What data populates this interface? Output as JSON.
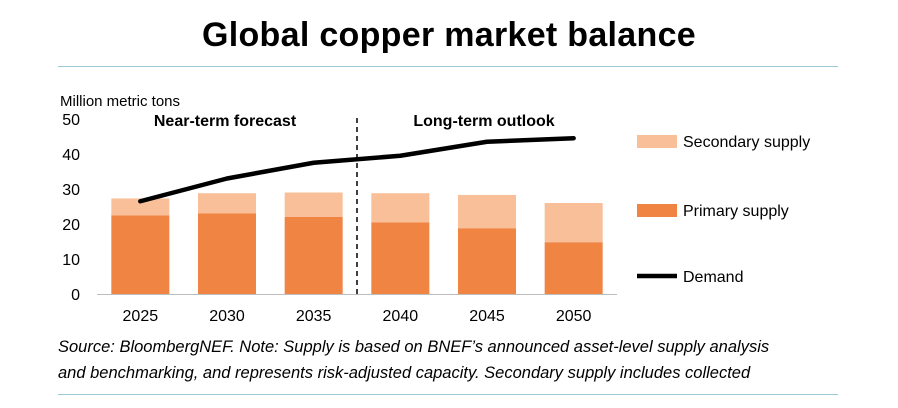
{
  "title": "Global copper market balance",
  "source_lines": [
    "Source: BloombergNEF. Note: Supply is based on BNEF’s announced asset-level supply analysis",
    "and benchmarking, and represents risk-adjusted capacity. Secondary supply includes collected"
  ],
  "colors": {
    "primary": "#ef8443",
    "secondary": "#f8bf98",
    "demand": "#000000",
    "rule": "#9ec9d6"
  },
  "chart_data": {
    "type": "bar",
    "ylabel": "Million metric tons",
    "ylim": [
      0,
      50
    ],
    "yticks": [
      0,
      10,
      20,
      30,
      40,
      50
    ],
    "categories": [
      "2025",
      "2030",
      "2035",
      "2040",
      "2045",
      "2050"
    ],
    "series": [
      {
        "name": "Primary supply",
        "kind": "stacked-bar",
        "values": [
          22.5,
          23,
          22,
          20.5,
          18.8,
          14.8
        ]
      },
      {
        "name": "Secondary supply",
        "kind": "stacked-bar",
        "values": [
          4.8,
          5.8,
          7.0,
          8.3,
          9.5,
          11.2
        ]
      },
      {
        "name": "Demand",
        "kind": "line",
        "values": [
          26.5,
          33,
          37.5,
          39.5,
          43.5,
          44.5
        ]
      }
    ],
    "annotations": [
      "Near-term forecast",
      "Long-term outlook"
    ],
    "divider_between": [
      "2035",
      "2040"
    ],
    "legend": [
      "Secondary supply",
      "Primary supply",
      "Demand"
    ],
    "legend_position": "right",
    "grid": false
  }
}
